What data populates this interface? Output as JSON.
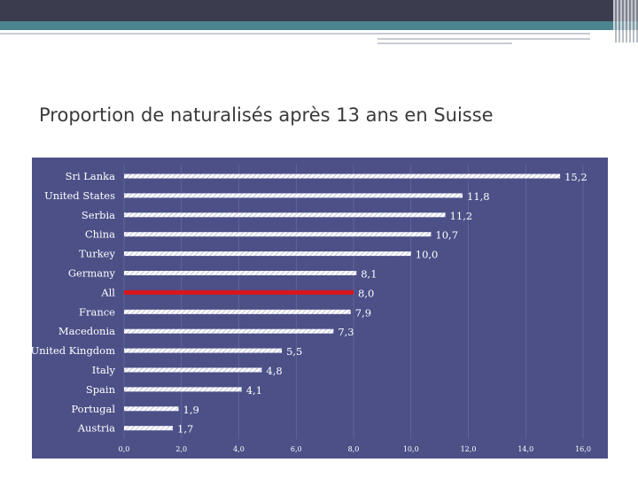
{
  "slide": {
    "title": "Proportion de naturalisés après 13 ans en Suisse"
  },
  "colors": {
    "panel": "#4c5087",
    "bar": "#ffffff",
    "highlight_bar": "#d7161d"
  },
  "chart_data": {
    "type": "bar",
    "orientation": "horizontal",
    "categories": [
      "Sri Lanka",
      "United States",
      "Serbia",
      "China",
      "Turkey",
      "Germany",
      "All",
      "France",
      "Macedonia",
      "United Kingdom",
      "Italy",
      "Spain",
      "Portugal",
      "Austria"
    ],
    "values": [
      15.2,
      11.8,
      11.2,
      10.7,
      10.0,
      8.1,
      8.0,
      7.9,
      7.3,
      5.5,
      4.8,
      4.1,
      1.9,
      1.7
    ],
    "value_labels": [
      "15,2",
      "11,8",
      "11,2",
      "10,7",
      "10,0",
      "8,1",
      "8,0",
      "7,9",
      "7,3",
      "5,5",
      "4,8",
      "4,1",
      "1,9",
      "1,7"
    ],
    "highlight_category": "All",
    "xlim": [
      0,
      16
    ],
    "x_ticks": [
      0,
      2,
      4,
      6,
      8,
      10,
      12,
      14,
      16
    ],
    "x_tick_labels": [
      "0,0",
      "2,0",
      "4,0",
      "6,0",
      "8,0",
      "10,0",
      "12,0",
      "14,0",
      "16,0"
    ],
    "grid": true,
    "legend": false
  }
}
